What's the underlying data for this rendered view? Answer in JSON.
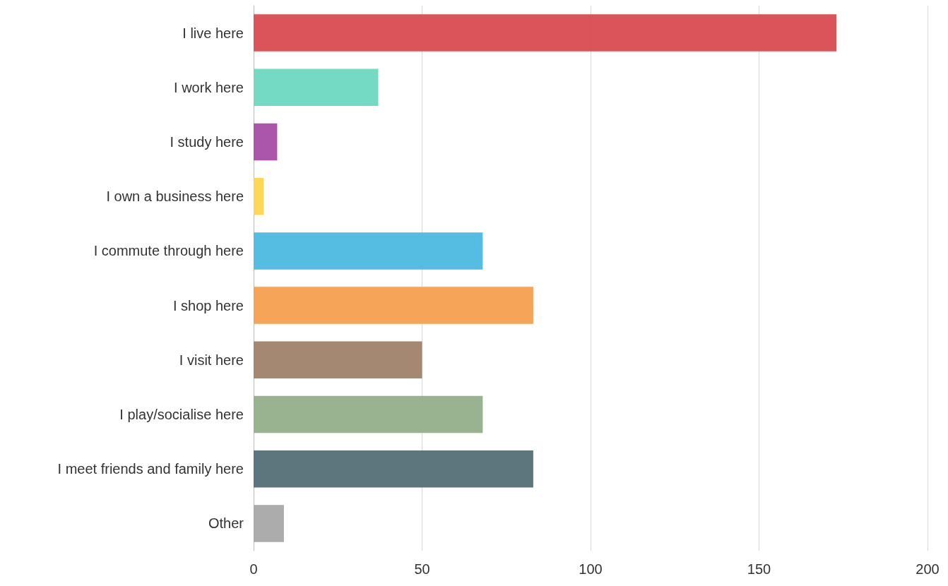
{
  "chart_data": {
    "type": "bar",
    "orientation": "horizontal",
    "categories": [
      "I live here",
      "I work here",
      "I study here",
      "I own a business here",
      "I commute through here",
      "I shop here",
      "I visit here",
      "I play/socialise here",
      "I meet friends and family here",
      "Other"
    ],
    "values": [
      173,
      37,
      7,
      3,
      68,
      83,
      50,
      68,
      83,
      9
    ],
    "colors": [
      "#d94b50",
      "#6dd8c0",
      "#a64ca6",
      "#fdd54c",
      "#4cb8e0",
      "#f49f4f",
      "#a0826a",
      "#93ae8a",
      "#546e76",
      "#a8a8a8"
    ],
    "xlim": [
      0,
      200
    ],
    "xticks": [
      0,
      50,
      100,
      150,
      200
    ],
    "grid": "x"
  }
}
